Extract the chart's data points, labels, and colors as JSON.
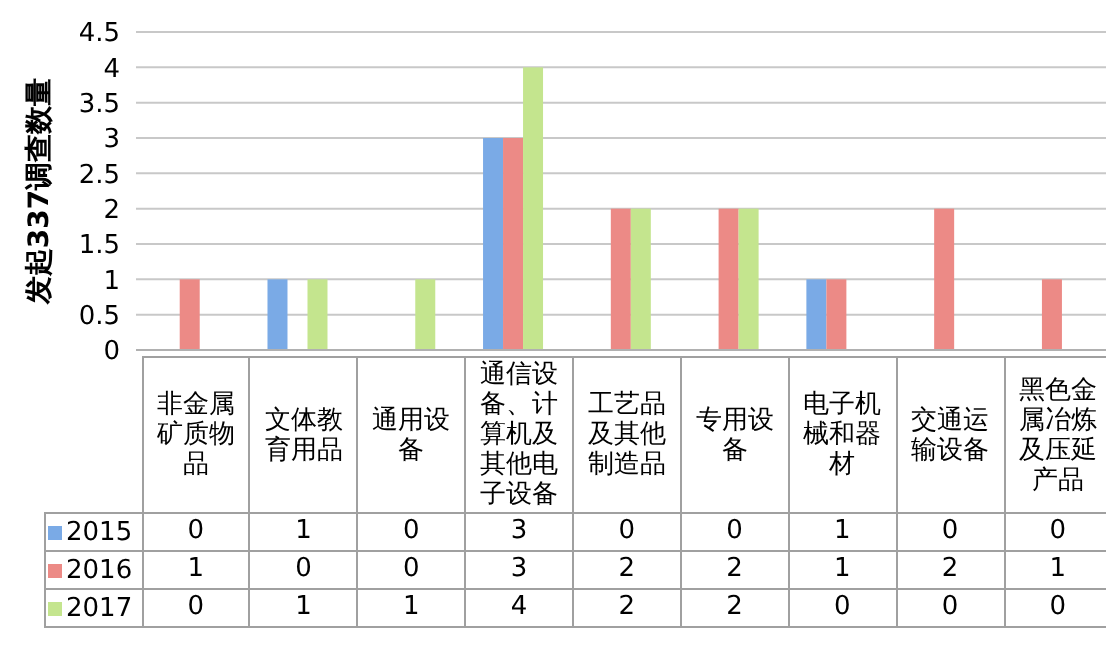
{
  "chart_data": {
    "type": "bar",
    "ylabel": "发起337调查数量",
    "categories": [
      "非金属矿质物品",
      "文体教育用品",
      "通用设备",
      "通信设备、计算机及其他电子设备",
      "工艺品及其他制造品",
      "专用设备",
      "电子机械和器材",
      "交通运输设备",
      "黑色金属冶炼及压延产品"
    ],
    "series": [
      {
        "name": "2015",
        "color": "#7aaae6",
        "values": [
          0,
          1,
          0,
          3,
          0,
          0,
          1,
          0,
          0
        ]
      },
      {
        "name": "2016",
        "color": "#ec8a86",
        "values": [
          1,
          0,
          0,
          3,
          2,
          2,
          1,
          2,
          1
        ]
      },
      {
        "name": "2017",
        "color": "#c4e58e",
        "values": [
          0,
          1,
          1,
          4,
          2,
          2,
          0,
          0,
          0
        ]
      }
    ],
    "ylim": [
      0,
      4.5
    ],
    "yticks": [
      0,
      0.5,
      1,
      1.5,
      2,
      2.5,
      3,
      3.5,
      4,
      4.5
    ],
    "grid": "y",
    "legend": "bottom",
    "data_labels": true
  }
}
